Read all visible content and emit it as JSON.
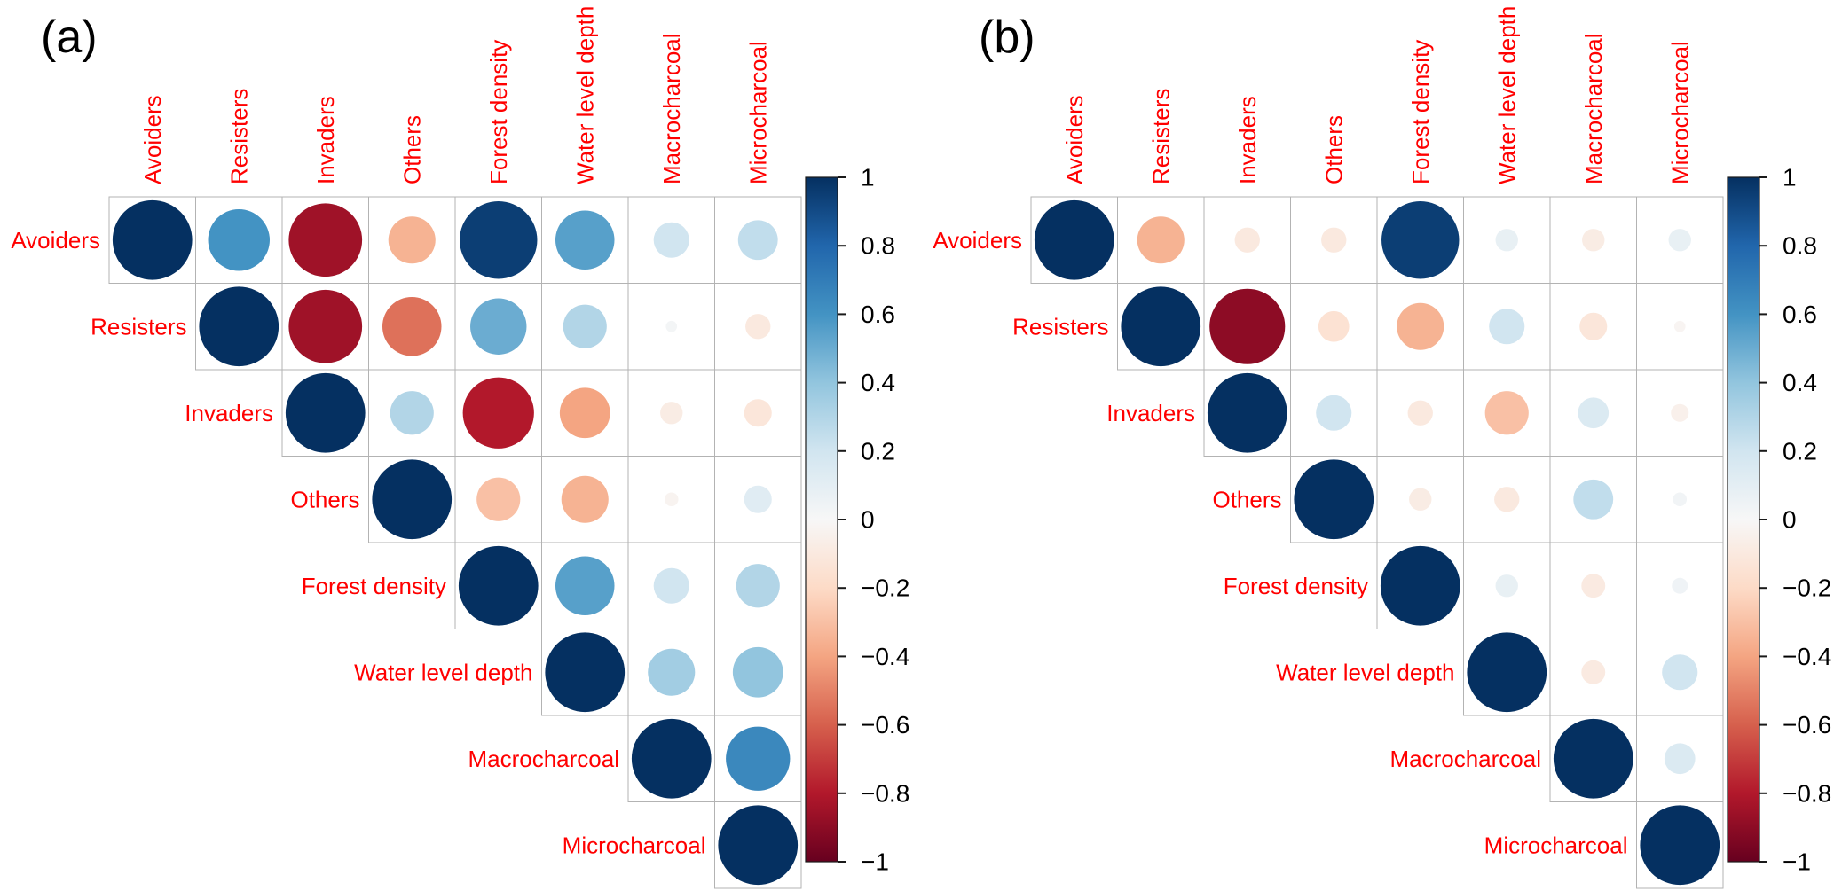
{
  "figure": {
    "background": "#ffffff",
    "variable_label_color": "#ff0000",
    "panel_tag_color": "#000000",
    "grid_line_color": "#b3b3b3",
    "palette": {
      "name": "RdBu",
      "values": [
        -1,
        -0.8,
        -0.6,
        -0.4,
        -0.2,
        0,
        0.2,
        0.4,
        0.6,
        0.8,
        1
      ],
      "colors": [
        "#67001f",
        "#b2182b",
        "#d6604d",
        "#f4a582",
        "#fddbc7",
        "#f7f7f7",
        "#d1e5f0",
        "#92c5de",
        "#4393c3",
        "#2166ac",
        "#053061"
      ]
    },
    "colorbar": {
      "tick_labels": [
        "1",
        "0.8",
        "0.6",
        "0.4",
        "0.2",
        "0",
        "−0.2",
        "−0.4",
        "−0.6",
        "−0.8",
        "−1"
      ],
      "tick_values": [
        1,
        0.8,
        0.6,
        0.4,
        0.2,
        0,
        -0.2,
        -0.4,
        -0.6,
        -0.8,
        -1
      ]
    }
  },
  "chart_data": [
    {
      "type": "heatmap",
      "subtype": "correlation-circle-matrix",
      "title": "(a)",
      "triangle": "upper",
      "legend_position": "right",
      "value_range": [
        -1,
        1
      ],
      "variables": [
        "Avoiders",
        "Resisters",
        "Invaders",
        "Others",
        "Forest density",
        "Water level depth",
        "Macrocharcoal",
        "Microcharcoal"
      ],
      "upper_rows": [
        [
          1,
          0.6,
          -0.85,
          -0.35,
          0.95,
          0.55,
          0.2,
          0.25
        ],
        [
          1,
          -0.85,
          -0.55,
          0.5,
          0.3,
          0.02,
          -0.1
        ],
        [
          1,
          0.3,
          -0.8,
          -0.4,
          -0.08,
          -0.12
        ],
        [
          1,
          -0.3,
          -0.35,
          -0.03,
          0.12
        ],
        [
          1,
          0.55,
          0.2,
          0.3
        ],
        [
          1,
          0.35,
          0.4
        ],
        [
          1,
          0.65
        ],
        [
          1
        ]
      ]
    },
    {
      "type": "heatmap",
      "subtype": "correlation-circle-matrix",
      "title": "(b)",
      "triangle": "upper",
      "legend_position": "right",
      "value_range": [
        -1,
        1
      ],
      "variables": [
        "Avoiders",
        "Resisters",
        "Invaders",
        "Others",
        "Forest density",
        "Water level depth",
        "Macrocharcoal",
        "Microcharcoal"
      ],
      "upper_rows": [
        [
          1,
          -0.35,
          -0.1,
          -0.1,
          0.95,
          0.08,
          -0.08,
          0.08
        ],
        [
          1,
          -0.9,
          -0.15,
          -0.35,
          0.2,
          -0.12,
          -0.02
        ],
        [
          1,
          0.2,
          -0.1,
          -0.3,
          0.15,
          -0.05
        ],
        [
          1,
          -0.08,
          -0.1,
          0.25,
          0.03
        ],
        [
          1,
          0.08,
          -0.09,
          0.04
        ],
        [
          1,
          -0.09,
          0.2
        ],
        [
          1,
          0.15
        ],
        [
          1
        ]
      ]
    }
  ]
}
